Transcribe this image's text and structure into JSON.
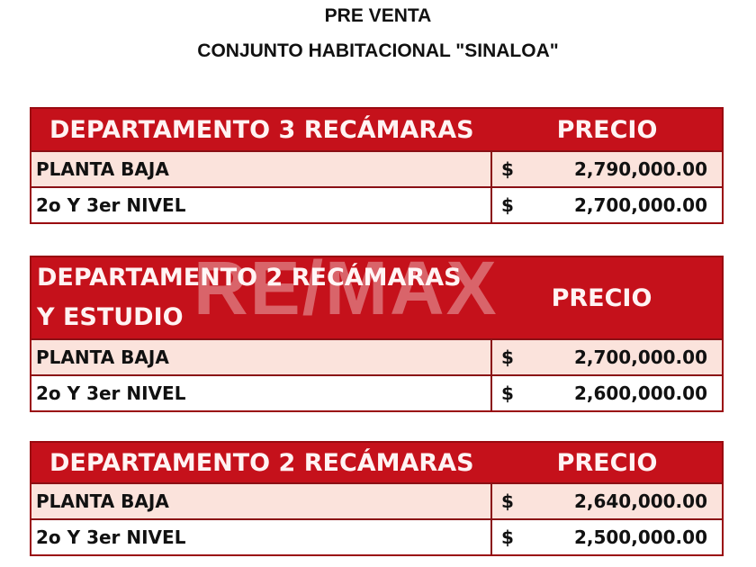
{
  "header": {
    "line1": "PRE VENTA",
    "line2": "CONJUNTO HABITACIONAL \"SINALOA\""
  },
  "sections": [
    {
      "name": "DEPARTAMENTO 3 RECÁMARAS",
      "price_header": "PRECIO",
      "rows": [
        {
          "label": "PLANTA BAJA",
          "currency": "$",
          "amount": "2,790,000.00"
        },
        {
          "label": "2o Y 3er NIVEL",
          "currency": "$",
          "amount": "2,700,000.00"
        }
      ]
    },
    {
      "name": "DEPARTAMENTO 2 RECÁMARAS Y ESTUDIO",
      "price_header": "PRECIO",
      "rows": [
        {
          "label": "PLANTA BAJA",
          "currency": "$",
          "amount": "2,700,000.00"
        },
        {
          "label": "2o Y 3er NIVEL",
          "currency": "$",
          "amount": "2,600,000.00"
        }
      ]
    },
    {
      "name": "DEPARTAMENTO 2 RECÁMARAS",
      "price_header": "PRECIO",
      "rows": [
        {
          "label": "PLANTA BAJA",
          "currency": "$",
          "amount": "2,640,000.00"
        },
        {
          "label": "2o Y 3er NIVEL",
          "currency": "$",
          "amount": "2,500,000.00"
        }
      ]
    }
  ],
  "watermark": "RE/MAX",
  "colors": {
    "header_red": "#c5111b",
    "row_tint": "#fbe3dc"
  }
}
